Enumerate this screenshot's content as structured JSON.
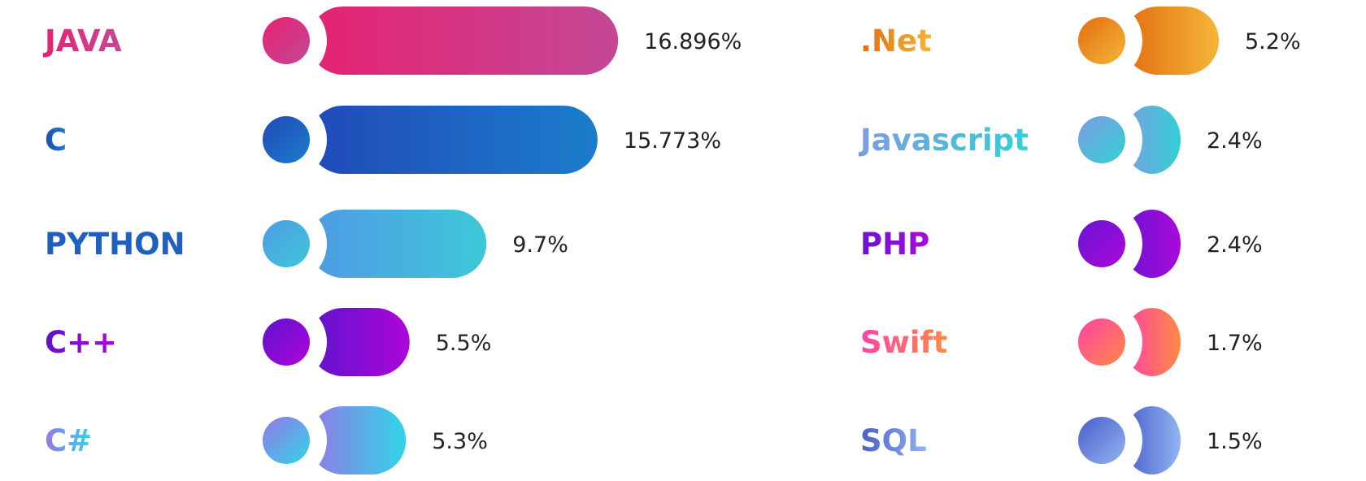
{
  "chart_data": {
    "type": "bar",
    "orientation": "horizontal",
    "layout": "two-columns",
    "series": [
      {
        "column": "left",
        "items": [
          {
            "label": "JAVA",
            "value": 16.896,
            "value_label": "16.896%",
            "colors": [
              "#e52272",
              "#c44894"
            ]
          },
          {
            "label": "C",
            "value": 15.773,
            "value_label": "15.773%",
            "colors": [
              "#2149b8",
              "#1b7dcb"
            ]
          },
          {
            "label": "PYTHON",
            "value": 9.7,
            "value_label": "9.7%",
            "colors": [
              "#4f9ae4",
              "#3ec8d8"
            ],
            "label_color": "#1e5fbf"
          },
          {
            "label": "C++",
            "value": 5.5,
            "value_label": "5.5%",
            "colors": [
              "#5e12cd",
              "#ad06d8"
            ]
          },
          {
            "label": "C#",
            "value": 5.3,
            "value_label": "5.3%",
            "colors": [
              "#9577e6",
              "#2fd6e8"
            ]
          }
        ]
      },
      {
        "column": "right",
        "items": [
          {
            "label": ".Net",
            "value": 5.2,
            "value_label": "5.2%",
            "colors": [
              "#e36e11",
              "#f4b537"
            ]
          },
          {
            "label": "Javascript",
            "value": 2.4,
            "value_label": "2.4%",
            "colors": [
              "#7c9de4",
              "#33cfd3"
            ]
          },
          {
            "label": "PHP",
            "value": 2.4,
            "value_label": "2.4%",
            "colors": [
              "#6913d2",
              "#a90ada"
            ]
          },
          {
            "label": "Swift",
            "value": 1.7,
            "value_label": "1.7%",
            "colors": [
              "#ff42a5",
              "#ff8a45"
            ]
          },
          {
            "label": "SQL",
            "value": 1.5,
            "value_label": "1.5%",
            "colors": [
              "#4a5ecc",
              "#91b4f1"
            ]
          }
        ]
      }
    ]
  }
}
